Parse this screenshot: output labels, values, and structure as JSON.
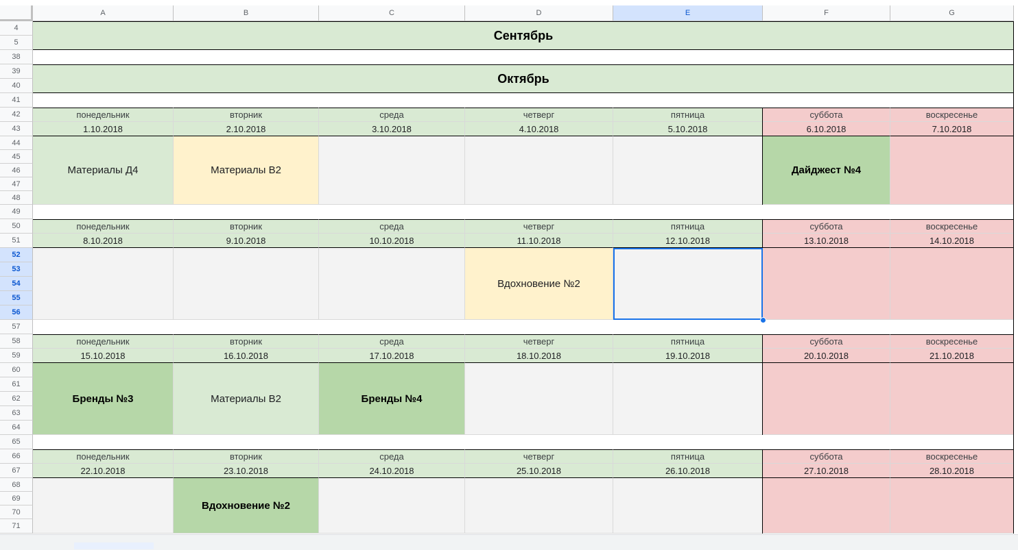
{
  "columns": [
    "A",
    "B",
    "C",
    "D",
    "E",
    "F",
    "G"
  ],
  "selected_column": "E",
  "rows": [
    "4",
    "5",
    "38",
    "39",
    "40",
    "41",
    "42",
    "43",
    "44",
    "45",
    "46",
    "47",
    "48",
    "49",
    "50",
    "51",
    "52",
    "53",
    "54",
    "55",
    "56",
    "57",
    "58",
    "59",
    "60",
    "61",
    "62",
    "63",
    "64",
    "65",
    "66",
    "67",
    "68",
    "69",
    "70",
    "71"
  ],
  "selected_rows": [
    "52",
    "53",
    "54",
    "55",
    "56"
  ],
  "months": [
    {
      "label": "Сентябрь"
    },
    {
      "label": "Октябрь"
    }
  ],
  "weekdays": [
    "понедельник",
    "вторник",
    "среда",
    "четверг",
    "пятница",
    "суббота",
    "воскресенье"
  ],
  "weeks": [
    {
      "dates": [
        "1.10.2018",
        "2.10.2018",
        "3.10.2018",
        "4.10.2018",
        "5.10.2018",
        "6.10.2018",
        "7.10.2018"
      ],
      "events": [
        {
          "text": "Материалы Д4",
          "fill": "#d9ead3",
          "bold": false
        },
        {
          "text": "Материалы В2",
          "fill": "#fff2cc",
          "bold": false
        },
        {
          "text": "",
          "fill": "#f3f3f3",
          "bold": false
        },
        {
          "text": "",
          "fill": "#f3f3f3",
          "bold": false
        },
        {
          "text": "",
          "fill": "#f3f3f3",
          "bold": false
        },
        {
          "text": "Дайджест №4",
          "fill": "#b6d7a8",
          "bold": true
        },
        {
          "text": "",
          "fill": "#f4cccc",
          "bold": false
        }
      ]
    },
    {
      "dates": [
        "8.10.2018",
        "9.10.2018",
        "10.10.2018",
        "11.10.2018",
        "12.10.2018",
        "13.10.2018",
        "14.10.2018"
      ],
      "events": [
        {
          "text": "",
          "fill": "#f3f3f3",
          "bold": false
        },
        {
          "text": "",
          "fill": "#f3f3f3",
          "bold": false
        },
        {
          "text": "",
          "fill": "#f3f3f3",
          "bold": false
        },
        {
          "text": "Вдохновение №2",
          "fill": "#fff2cc",
          "bold": false
        },
        {
          "text": "",
          "fill": "#f3f3f3",
          "bold": false
        },
        {
          "text": "",
          "fill": "#f4cccc",
          "bold": false
        },
        {
          "text": "",
          "fill": "#f4cccc",
          "bold": false
        }
      ]
    },
    {
      "dates": [
        "15.10.2018",
        "16.10.2018",
        "17.10.2018",
        "18.10.2018",
        "19.10.2018",
        "20.10.2018",
        "21.10.2018"
      ],
      "events": [
        {
          "text": "Бренды №3",
          "fill": "#b6d7a8",
          "bold": true
        },
        {
          "text": "Материалы В2",
          "fill": "#d9ead3",
          "bold": false
        },
        {
          "text": "Бренды №4",
          "fill": "#b6d7a8",
          "bold": true
        },
        {
          "text": "",
          "fill": "#f3f3f3",
          "bold": false
        },
        {
          "text": "",
          "fill": "#f3f3f3",
          "bold": false
        },
        {
          "text": "",
          "fill": "#f4cccc",
          "bold": false
        },
        {
          "text": "",
          "fill": "#f4cccc",
          "bold": false
        }
      ]
    },
    {
      "dates": [
        "22.10.2018",
        "23.10.2018",
        "24.10.2018",
        "25.10.2018",
        "26.10.2018",
        "27.10.2018",
        "28.10.2018"
      ],
      "events": [
        {
          "text": "",
          "fill": "#f3f3f3",
          "bold": false
        },
        {
          "text": "Вдохновение №2",
          "fill": "#b6d7a8",
          "bold": true
        },
        {
          "text": "",
          "fill": "#f3f3f3",
          "bold": false
        },
        {
          "text": "",
          "fill": "#f3f3f3",
          "bold": false
        },
        {
          "text": "",
          "fill": "#f3f3f3",
          "bold": false
        },
        {
          "text": "",
          "fill": "#f4cccc",
          "bold": false
        },
        {
          "text": "",
          "fill": "#f4cccc",
          "bold": false
        }
      ]
    }
  ],
  "colors": {
    "weekday_header": "#d9ead3",
    "weekend_header": "#f4cccc",
    "selection": "#1a73e8"
  }
}
